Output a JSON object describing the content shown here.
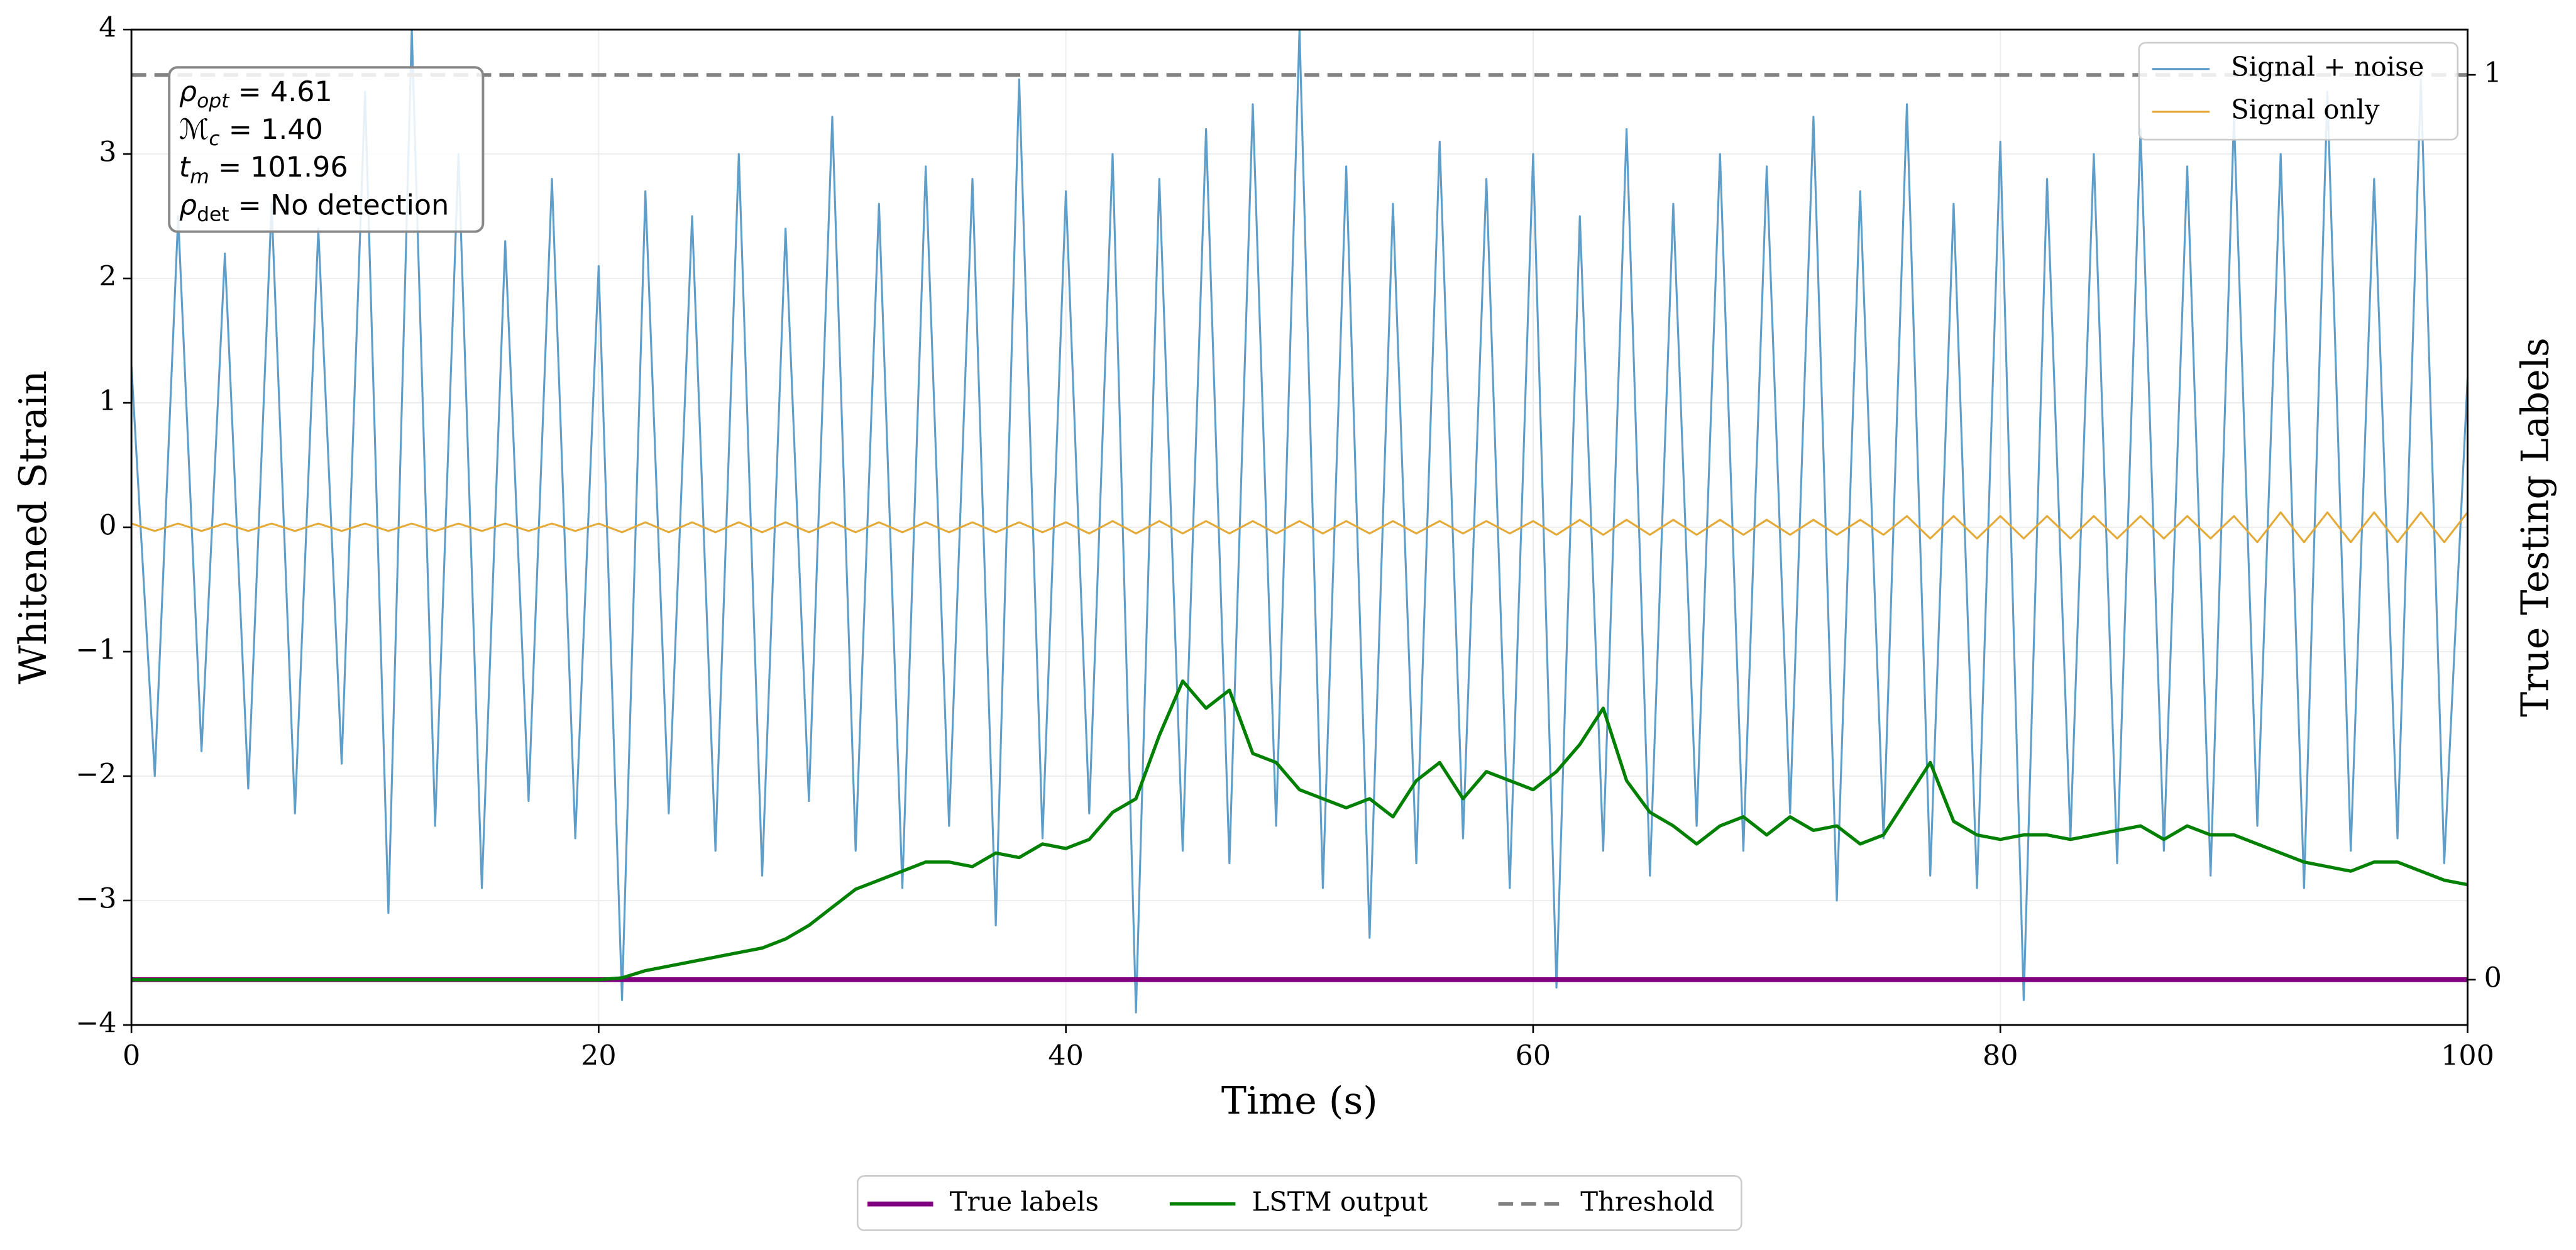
{
  "chart_data": {
    "type": "line",
    "xlabel": "Time (s)",
    "ylabel": "Whitened Strain",
    "y2label": "True Testing Labels",
    "xlim": [
      0,
      100
    ],
    "xticks": [
      0,
      20,
      40,
      60,
      80,
      100
    ],
    "ylim": [
      -4,
      4
    ],
    "yticks": [
      {
        "value": -4,
        "label": "−4"
      },
      {
        "value": -3,
        "label": "−3"
      },
      {
        "value": -2,
        "label": "−2"
      },
      {
        "value": -1,
        "label": "−1"
      },
      0,
      1,
      2,
      3,
      4
    ],
    "y2lim": [
      -0.05,
      1.05
    ],
    "y2ticks": [
      0,
      1
    ],
    "grid": true,
    "legend": "upper right",
    "y2_legend": "lower center",
    "annotations": [
      {
        "symbol": "ρ",
        "sub": "opt",
        "text": " = 4.61"
      },
      {
        "symbol": "ℳ",
        "sub": "c",
        "text": " = 1.40"
      },
      {
        "symbol": "t",
        "sub": "m",
        "text": " = 101.96"
      },
      {
        "symbol": "ρ",
        "sub": "det",
        "text": " = No detection"
      }
    ],
    "x": [
      0,
      1,
      2,
      3,
      4,
      5,
      6,
      7,
      8,
      9,
      10,
      11,
      12,
      13,
      14,
      15,
      16,
      17,
      18,
      19,
      20,
      21,
      22,
      23,
      24,
      25,
      26,
      27,
      28,
      29,
      30,
      31,
      32,
      33,
      34,
      35,
      36,
      37,
      38,
      39,
      40,
      41,
      42,
      43,
      44,
      45,
      46,
      47,
      48,
      49,
      50,
      51,
      52,
      53,
      54,
      55,
      56,
      57,
      58,
      59,
      60,
      61,
      62,
      63,
      64,
      65,
      66,
      67,
      68,
      69,
      70,
      71,
      72,
      73,
      74,
      75,
      76,
      77,
      78,
      79,
      80,
      81,
      82,
      83,
      84,
      85,
      86,
      87,
      88,
      89,
      90,
      91,
      92,
      93,
      94,
      95,
      96,
      97,
      98,
      99,
      100
    ],
    "series": [
      {
        "name": "Signal + noise",
        "color": "#5799c7",
        "values": [
          1.3,
          -2.0,
          2.5,
          -1.8,
          2.2,
          -2.1,
          2.6,
          -2.3,
          2.4,
          -1.9,
          3.5,
          -3.1,
          4.0,
          -2.4,
          3.0,
          -2.9,
          2.3,
          -2.2,
          2.8,
          -2.5,
          2.1,
          -3.8,
          2.7,
          -2.3,
          2.5,
          -2.6,
          3.0,
          -2.8,
          2.4,
          -2.2,
          3.3,
          -2.6,
          2.6,
          -2.9,
          2.9,
          -2.4,
          2.8,
          -3.2,
          3.6,
          -2.5,
          2.7,
          -2.3,
          3.0,
          -3.9,
          2.8,
          -2.6,
          3.2,
          -2.7,
          3.4,
          -2.4,
          4.0,
          -2.9,
          2.9,
          -3.3,
          2.6,
          -2.7,
          3.1,
          -2.5,
          2.8,
          -2.9,
          3.0,
          -3.7,
          2.5,
          -2.6,
          3.2,
          -2.8,
          2.6,
          -2.4,
          3.0,
          -2.6,
          2.9,
          -2.3,
          3.3,
          -3.0,
          2.7,
          -2.5,
          3.4,
          -2.8,
          2.6,
          -2.9,
          3.1,
          -3.8,
          2.8,
          -2.5,
          3.0,
          -2.7,
          3.2,
          -2.6,
          2.9,
          -2.8,
          3.3,
          -2.4,
          3.0,
          -2.9,
          3.5,
          -2.6,
          2.8,
          -2.5,
          3.6,
          -2.7,
          1.2
        ]
      },
      {
        "name": "Signal only",
        "color": "#e3a72f",
        "values": [
          0.03,
          -0.03,
          0.03,
          -0.03,
          0.03,
          -0.03,
          0.03,
          -0.03,
          0.03,
          -0.03,
          0.03,
          -0.03,
          0.03,
          -0.03,
          0.03,
          -0.03,
          0.03,
          -0.03,
          0.03,
          -0.03,
          0.03,
          -0.04,
          0.04,
          -0.04,
          0.04,
          -0.04,
          0.04,
          -0.04,
          0.04,
          -0.04,
          0.04,
          -0.04,
          0.04,
          -0.04,
          0.04,
          -0.04,
          0.04,
          -0.04,
          0.04,
          -0.04,
          0.04,
          -0.05,
          0.05,
          -0.05,
          0.05,
          -0.05,
          0.05,
          -0.05,
          0.05,
          -0.05,
          0.05,
          -0.05,
          0.05,
          -0.05,
          0.05,
          -0.05,
          0.05,
          -0.05,
          0.05,
          -0.05,
          0.05,
          -0.06,
          0.06,
          -0.06,
          0.06,
          -0.06,
          0.06,
          -0.06,
          0.06,
          -0.06,
          0.06,
          -0.06,
          0.06,
          -0.06,
          0.06,
          -0.06,
          0.09,
          -0.09,
          0.09,
          -0.09,
          0.09,
          -0.09,
          0.09,
          -0.09,
          0.09,
          -0.09,
          0.09,
          -0.09,
          0.09,
          -0.09,
          0.09,
          -0.12,
          0.12,
          -0.12,
          0.12,
          -0.12,
          0.12,
          -0.12,
          0.12,
          -0.12,
          0.12
        ]
      },
      {
        "name": "True labels",
        "color": "#800080",
        "axis": "y2",
        "x": [
          0,
          100
        ],
        "values": [
          0,
          0
        ]
      },
      {
        "name": "LSTM output",
        "color": "#008000",
        "axis": "y2",
        "values": [
          0,
          0,
          0,
          0,
          0,
          0,
          0,
          0,
          0,
          0,
          0,
          0,
          0,
          0,
          0,
          0,
          0,
          0,
          0,
          0,
          0,
          0.002,
          0.01,
          0.015,
          0.02,
          0.025,
          0.03,
          0.035,
          0.045,
          0.06,
          0.08,
          0.1,
          0.11,
          0.12,
          0.13,
          0.13,
          0.125,
          0.14,
          0.135,
          0.15,
          0.145,
          0.155,
          0.185,
          0.2,
          0.27,
          0.33,
          0.3,
          0.32,
          0.25,
          0.24,
          0.21,
          0.2,
          0.19,
          0.2,
          0.18,
          0.22,
          0.24,
          0.2,
          0.23,
          0.22,
          0.21,
          0.23,
          0.26,
          0.3,
          0.22,
          0.185,
          0.17,
          0.15,
          0.17,
          0.18,
          0.16,
          0.18,
          0.165,
          0.17,
          0.15,
          0.16,
          0.2,
          0.24,
          0.175,
          0.16,
          0.155,
          0.16,
          0.16,
          0.155,
          0.16,
          0.165,
          0.17,
          0.155,
          0.17,
          0.16,
          0.16,
          0.15,
          0.14,
          0.13,
          0.125,
          0.12,
          0.13,
          0.13,
          0.12,
          0.11,
          0.105
        ]
      },
      {
        "name": "Threshold",
        "color": "#808080",
        "axis": "y2",
        "linestyle": "dashed",
        "x": [
          0,
          100
        ],
        "values": [
          1,
          1
        ]
      }
    ]
  }
}
